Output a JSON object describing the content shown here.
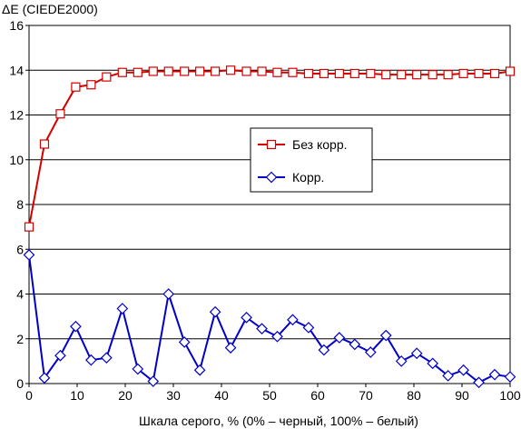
{
  "chart_data": {
    "type": "line",
    "title": "",
    "ylabel": "ΔE (CIEDE2000)",
    "xlabel": "Шкала серого, % (0% – черный, 100% – белый)",
    "xlim": [
      0,
      100
    ],
    "ylim": [
      0,
      16
    ],
    "xticks": [
      "0",
      "10",
      "20",
      "30",
      "40",
      "50",
      "60",
      "70",
      "80",
      "90",
      "100"
    ],
    "yticks": [
      "0",
      "2",
      "4",
      "6",
      "8",
      "10",
      "12",
      "14",
      "16"
    ],
    "grid": "horizontal",
    "legend_position": "right-center",
    "x": [
      0,
      3.2,
      6.5,
      9.7,
      12.9,
      16.1,
      19.4,
      22.6,
      25.8,
      29.0,
      32.3,
      35.5,
      38.7,
      41.9,
      45.2,
      48.4,
      51.6,
      54.8,
      58.1,
      61.3,
      64.5,
      67.7,
      71.0,
      74.2,
      77.4,
      80.6,
      83.9,
      87.1,
      90.3,
      93.5,
      96.8,
      100
    ],
    "series": [
      {
        "name": "Без корр.",
        "color": "#d40000",
        "marker": "square",
        "values": [
          7.0,
          10.7,
          12.05,
          13.25,
          13.35,
          13.7,
          13.9,
          13.9,
          13.95,
          13.95,
          13.95,
          13.95,
          13.95,
          14.0,
          13.95,
          13.95,
          13.9,
          13.9,
          13.85,
          13.85,
          13.85,
          13.85,
          13.85,
          13.8,
          13.8,
          13.8,
          13.8,
          13.8,
          13.85,
          13.85,
          13.85,
          13.95
        ]
      },
      {
        "name": "Корр.",
        "color": "#0000c8",
        "marker": "diamond",
        "values": [
          5.75,
          0.25,
          1.25,
          2.55,
          1.05,
          1.15,
          3.35,
          0.65,
          0.1,
          4.0,
          1.85,
          0.6,
          3.2,
          1.6,
          2.95,
          2.45,
          2.1,
          2.85,
          2.5,
          1.5,
          2.05,
          1.75,
          1.4,
          2.15,
          1.0,
          1.35,
          0.9,
          0.35,
          0.6,
          0.05,
          0.4,
          0.3
        ]
      }
    ]
  }
}
